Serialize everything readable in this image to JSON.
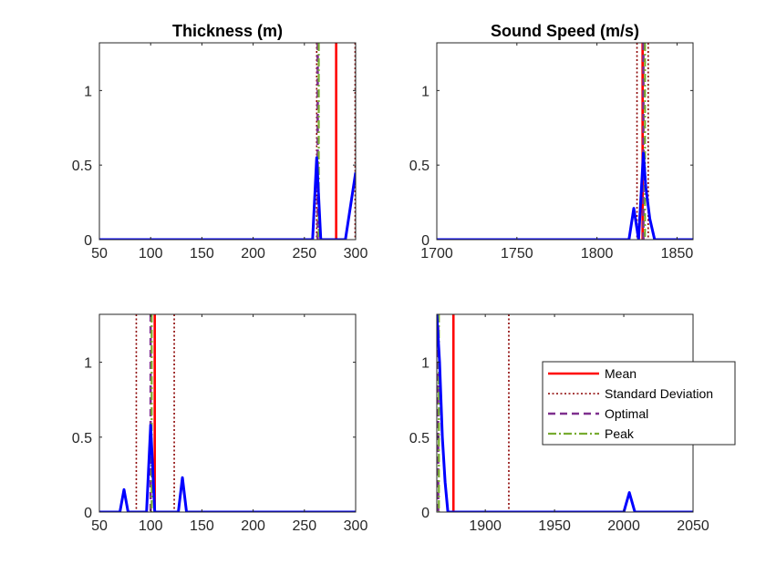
{
  "chart_data": [
    {
      "type": "line",
      "title": "Thickness (m)",
      "xlim": [
        50,
        300
      ],
      "ylim": [
        0,
        1.32
      ],
      "xticks": [
        50,
        100,
        150,
        200,
        250,
        300
      ],
      "xtick_labels": [
        "50",
        "100",
        "150",
        "200",
        "250",
        "300"
      ],
      "yticks": [
        0,
        0.5,
        1
      ],
      "ytick_labels": [
        "0",
        "0.5",
        "1"
      ],
      "series": [
        {
          "x": [
            50,
            258,
            262,
            266,
            290,
            300
          ],
          "y": [
            0,
            0,
            0.55,
            0,
            0,
            0.45
          ],
          "color": "#0000ff",
          "style": "solid"
        }
      ],
      "vlines": [
        {
          "x": 281,
          "style": "mean",
          "color": "#ff0000"
        },
        {
          "x": 262,
          "style": "std",
          "color": "#8b0000"
        },
        {
          "x": 299.5,
          "style": "std",
          "color": "#8b0000"
        },
        {
          "x": 263,
          "style": "optimal",
          "color": "#7e2f8e"
        },
        {
          "x": 264,
          "style": "peak",
          "color": "#77ac30"
        }
      ]
    },
    {
      "type": "line",
      "title": "Sound Speed (m/s)",
      "xlim": [
        1700,
        1860
      ],
      "ylim": [
        0,
        1.32
      ],
      "xticks": [
        1700,
        1750,
        1800,
        1850
      ],
      "xtick_labels": [
        "1700",
        "1750",
        "1800",
        "1850"
      ],
      "yticks": [
        0,
        0.5,
        1
      ],
      "ytick_labels": [
        "0",
        "0.5",
        "1"
      ],
      "series": [
        {
          "x": [
            1700,
            1820,
            1823,
            1826,
            1829,
            1830.5,
            1833,
            1836,
            1860
          ],
          "y": [
            0,
            0,
            0.21,
            0,
            0.58,
            0.35,
            0.14,
            0,
            0
          ],
          "color": "#0000ff",
          "style": "solid"
        }
      ],
      "vlines": [
        {
          "x": 1828.5,
          "style": "mean",
          "color": "#ff0000"
        },
        {
          "x": 1825,
          "style": "std",
          "color": "#8b0000"
        },
        {
          "x": 1832,
          "style": "std",
          "color": "#8b0000"
        },
        {
          "x": 1829,
          "style": "optimal",
          "color": "#7e2f8e"
        },
        {
          "x": 1830,
          "style": "peak",
          "color": "#77ac30"
        }
      ]
    },
    {
      "type": "line",
      "title": "",
      "xlim": [
        50,
        300
      ],
      "ylim": [
        0,
        1.32
      ],
      "xticks": [
        50,
        100,
        150,
        200,
        250,
        300
      ],
      "xtick_labels": [
        "50",
        "100",
        "150",
        "200",
        "250",
        "300"
      ],
      "yticks": [
        0,
        0.5,
        1
      ],
      "ytick_labels": [
        "0",
        "0.5",
        "1"
      ],
      "series": [
        {
          "x": [
            50,
            70,
            74,
            78,
            96,
            100,
            104,
            127,
            131,
            135,
            300
          ],
          "y": [
            0,
            0,
            0.15,
            0,
            0,
            0.58,
            0,
            0,
            0.23,
            0,
            0
          ],
          "color": "#0000ff",
          "style": "solid"
        }
      ],
      "vlines": [
        {
          "x": 104,
          "style": "mean",
          "color": "#ff0000"
        },
        {
          "x": 86,
          "style": "std",
          "color": "#8b0000"
        },
        {
          "x": 123,
          "style": "std",
          "color": "#8b0000"
        },
        {
          "x": 100,
          "style": "optimal",
          "color": "#7e2f8e"
        },
        {
          "x": 101,
          "style": "peak",
          "color": "#77ac30"
        }
      ]
    },
    {
      "type": "line",
      "title": "",
      "xlim": [
        1865,
        2050
      ],
      "ylim": [
        0,
        1.32
      ],
      "xticks": [
        1900,
        1950,
        2000,
        2050
      ],
      "xtick_labels": [
        "1900",
        "1950",
        "2000",
        "2050"
      ],
      "yticks": [
        0,
        0.5,
        1
      ],
      "ytick_labels": [
        "0",
        "0.5",
        "1"
      ],
      "series": [
        {
          "x": [
            1865,
            1867,
            1869,
            1871,
            1873,
            2000,
            2004,
            2008,
            2050
          ],
          "y": [
            1.32,
            1.0,
            0.5,
            0.2,
            0,
            0,
            0.13,
            0,
            0
          ],
          "color": "#0000ff",
          "style": "solid"
        }
      ],
      "vlines": [
        {
          "x": 1877,
          "style": "mean",
          "color": "#ff0000"
        },
        {
          "x": 1917,
          "style": "std",
          "color": "#8b0000"
        },
        {
          "x": 1866,
          "style": "optimal",
          "color": "#7e2f8e"
        },
        {
          "x": 1866.5,
          "style": "peak",
          "color": "#77ac30"
        }
      ],
      "legend": {
        "position": "right",
        "entries": [
          {
            "label": "Mean",
            "style": "mean",
            "color": "#ff0000"
          },
          {
            "label": "Standard Deviation",
            "style": "std",
            "color": "#8b0000"
          },
          {
            "label": "Optimal",
            "style": "optimal",
            "color": "#7e2f8e"
          },
          {
            "label": "Peak",
            "style": "peak",
            "color": "#77ac30"
          }
        ]
      }
    }
  ]
}
